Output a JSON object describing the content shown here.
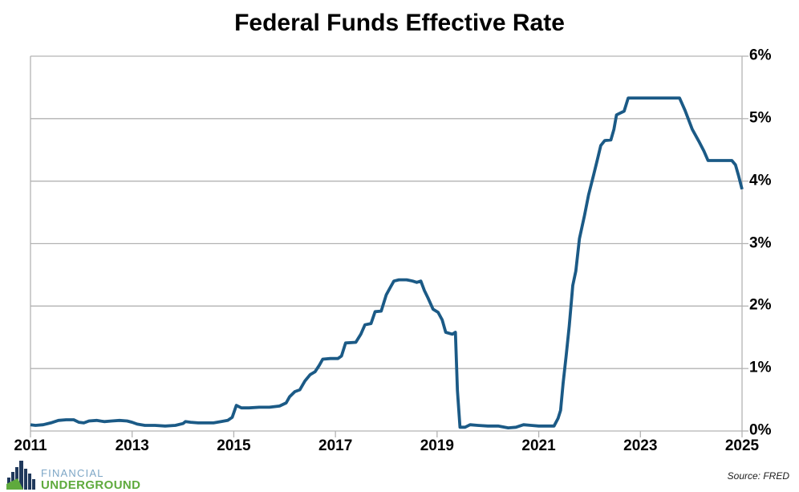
{
  "title": "Federal Funds Effective Rate",
  "source_note": "Source: FRED",
  "logo": {
    "line1": "FINANCIAL",
    "line2": "UNDERGROUND",
    "financial_color": "#7da6c6",
    "underground_color": "#5faa3d",
    "building_color": "#20395c",
    "hill_color": "#5faa3d"
  },
  "chart_data": {
    "type": "line",
    "title": "Federal Funds Effective Rate",
    "xlabel": "",
    "ylabel": "",
    "x_range": [
      2011,
      2025
    ],
    "y_range": [
      0,
      6
    ],
    "x_tick_values": [
      2011,
      2013,
      2015,
      2017,
      2019,
      2021,
      2023,
      2025
    ],
    "x_tick_labels": [
      "2011",
      "2013",
      "2015",
      "2017",
      "2019",
      "2021",
      "2023",
      "2025"
    ],
    "y_tick_values": [
      0,
      1,
      2,
      3,
      4,
      5,
      6
    ],
    "y_tick_labels": [
      "0%",
      "1%",
      "2%",
      "3%",
      "4%",
      "5%",
      "6%"
    ],
    "grid": "horizontal-only",
    "legend": "none",
    "line_color": "#1b5a86",
    "grid_color": "#b3b3b3",
    "source": "FRED",
    "series": [
      {
        "name": "Federal Funds Effective Rate (%)",
        "points": [
          [
            2011.0,
            0.1
          ],
          [
            2011.1,
            0.09
          ],
          [
            2011.25,
            0.1
          ],
          [
            2011.4,
            0.13
          ],
          [
            2011.55,
            0.17
          ],
          [
            2011.7,
            0.18
          ],
          [
            2011.85,
            0.18
          ],
          [
            2011.95,
            0.14
          ],
          [
            2012.05,
            0.13
          ],
          [
            2012.15,
            0.16
          ],
          [
            2012.3,
            0.17
          ],
          [
            2012.45,
            0.15
          ],
          [
            2012.6,
            0.16
          ],
          [
            2012.75,
            0.17
          ],
          [
            2012.9,
            0.16
          ],
          [
            2013.0,
            0.14
          ],
          [
            2013.1,
            0.11
          ],
          [
            2013.25,
            0.09
          ],
          [
            2013.45,
            0.09
          ],
          [
            2013.65,
            0.08
          ],
          [
            2013.85,
            0.09
          ],
          [
            2014.0,
            0.12
          ],
          [
            2014.05,
            0.15
          ],
          [
            2014.15,
            0.14
          ],
          [
            2014.3,
            0.13
          ],
          [
            2014.45,
            0.13
          ],
          [
            2014.6,
            0.13
          ],
          [
            2014.75,
            0.15
          ],
          [
            2014.88,
            0.17
          ],
          [
            2014.97,
            0.22
          ],
          [
            2015.05,
            0.41
          ],
          [
            2015.15,
            0.37
          ],
          [
            2015.3,
            0.37
          ],
          [
            2015.5,
            0.38
          ],
          [
            2015.7,
            0.38
          ],
          [
            2015.9,
            0.4
          ],
          [
            2016.03,
            0.45
          ],
          [
            2016.1,
            0.55
          ],
          [
            2016.2,
            0.63
          ],
          [
            2016.3,
            0.66
          ],
          [
            2016.4,
            0.8
          ],
          [
            2016.5,
            0.9
          ],
          [
            2016.6,
            0.95
          ],
          [
            2016.68,
            1.05
          ],
          [
            2016.75,
            1.15
          ],
          [
            2016.9,
            1.16
          ],
          [
            2017.05,
            1.16
          ],
          [
            2017.12,
            1.2
          ],
          [
            2017.2,
            1.41
          ],
          [
            2017.4,
            1.42
          ],
          [
            2017.5,
            1.55
          ],
          [
            2017.58,
            1.7
          ],
          [
            2017.7,
            1.72
          ],
          [
            2017.78,
            1.91
          ],
          [
            2017.9,
            1.92
          ],
          [
            2018.0,
            2.18
          ],
          [
            2018.08,
            2.3
          ],
          [
            2018.15,
            2.4
          ],
          [
            2018.25,
            2.42
          ],
          [
            2018.4,
            2.42
          ],
          [
            2018.52,
            2.4
          ],
          [
            2018.6,
            2.38
          ],
          [
            2018.68,
            2.4
          ],
          [
            2018.75,
            2.25
          ],
          [
            2018.82,
            2.13
          ],
          [
            2018.92,
            1.95
          ],
          [
            2019.02,
            1.9
          ],
          [
            2019.1,
            1.78
          ],
          [
            2019.17,
            1.58
          ],
          [
            2019.3,
            1.55
          ],
          [
            2019.36,
            1.58
          ],
          [
            2019.4,
            0.65
          ],
          [
            2019.45,
            0.06
          ],
          [
            2019.55,
            0.06
          ],
          [
            2019.65,
            0.1
          ],
          [
            2019.8,
            0.09
          ],
          [
            2020.0,
            0.08
          ],
          [
            2020.2,
            0.08
          ],
          [
            2020.4,
            0.05
          ],
          [
            2020.55,
            0.06
          ],
          [
            2020.7,
            0.1
          ],
          [
            2020.85,
            0.09
          ],
          [
            2021.0,
            0.08
          ],
          [
            2021.15,
            0.08
          ],
          [
            2021.3,
            0.08
          ],
          [
            2021.38,
            0.2
          ],
          [
            2021.43,
            0.33
          ],
          [
            2021.48,
            0.77
          ],
          [
            2021.54,
            1.21
          ],
          [
            2021.6,
            1.68
          ],
          [
            2021.67,
            2.33
          ],
          [
            2021.73,
            2.56
          ],
          [
            2021.8,
            3.08
          ],
          [
            2021.9,
            3.45
          ],
          [
            2021.98,
            3.78
          ],
          [
            2022.08,
            4.1
          ],
          [
            2022.15,
            4.33
          ],
          [
            2022.22,
            4.57
          ],
          [
            2022.3,
            4.65
          ],
          [
            2022.42,
            4.66
          ],
          [
            2022.48,
            4.83
          ],
          [
            2022.53,
            5.06
          ],
          [
            2022.58,
            5.08
          ],
          [
            2022.68,
            5.12
          ],
          [
            2022.76,
            5.33
          ],
          [
            2023.0,
            5.33
          ],
          [
            2023.3,
            5.33
          ],
          [
            2023.6,
            5.33
          ],
          [
            2023.77,
            5.33
          ],
          [
            2023.88,
            5.13
          ],
          [
            2024.02,
            4.83
          ],
          [
            2024.15,
            4.64
          ],
          [
            2024.25,
            4.48
          ],
          [
            2024.33,
            4.33
          ],
          [
            2024.5,
            4.33
          ],
          [
            2024.7,
            4.33
          ],
          [
            2024.8,
            4.33
          ],
          [
            2024.87,
            4.26
          ],
          [
            2024.93,
            4.09
          ],
          [
            2025.0,
            3.87
          ]
        ]
      }
    ]
  }
}
